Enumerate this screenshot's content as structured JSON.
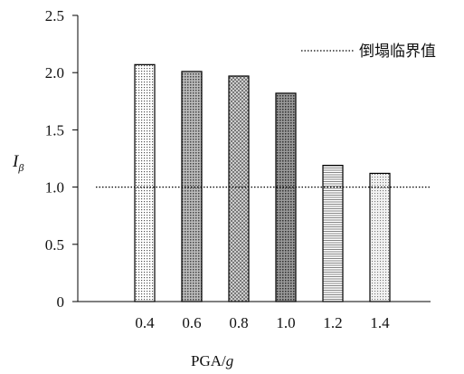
{
  "chart_data": {
    "type": "bar",
    "categories": [
      "0.4",
      "0.6",
      "0.8",
      "1.0",
      "1.2",
      "1.4"
    ],
    "values": [
      2.07,
      2.01,
      1.97,
      1.82,
      1.19,
      1.12
    ],
    "threshold": 1.0,
    "xlabel": {
      "main": "PGA/",
      "italic": "g"
    },
    "ylabel": {
      "main": "I",
      "sub": "β"
    },
    "yticks": [
      "0",
      "0.5",
      "1.0",
      "1.5",
      "2.0",
      "2.5"
    ],
    "ytick_values": [
      0,
      0.5,
      1.0,
      1.5,
      2.0,
      2.5
    ],
    "ylim": [
      0,
      2.5
    ],
    "grid": false,
    "legend": {
      "position": "top-right",
      "label": "倒塌临界值",
      "style": "dotted line"
    },
    "bar_patterns": [
      "fine-dots",
      "dark-dots",
      "crosshatch",
      "dense-dark",
      "horizontal-lines",
      "light-dots"
    ]
  }
}
